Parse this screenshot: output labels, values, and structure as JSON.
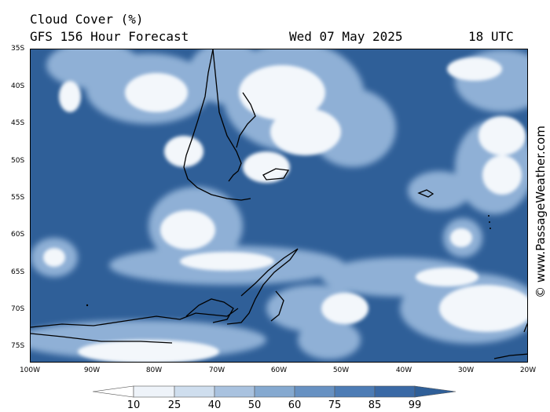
{
  "header": {
    "title": "Cloud Cover (%)",
    "forecast": "GFS 156 Hour Forecast",
    "date": "Wed 07 May 2025",
    "time": "18 UTC"
  },
  "axes": {
    "lat_labels": [
      "35S",
      "40S",
      "45S",
      "50S",
      "55S",
      "60S",
      "65S",
      "70S",
      "75S"
    ],
    "lon_labels": [
      "100W",
      "90W",
      "80W",
      "70W",
      "60W",
      "50W",
      "40W",
      "30W",
      "20W"
    ]
  },
  "credit": "© www.PassageWeather.com",
  "legend": {
    "labels": [
      "10",
      "25",
      "40",
      "50",
      "60",
      "75",
      "85",
      "99"
    ],
    "colors": [
      "#ffffff",
      "#eef3f9",
      "#cfdeee",
      "#a9c2df",
      "#85a9d0",
      "#6791c2",
      "#4d7cb5",
      "#3a69a5",
      "#2f5f98"
    ]
  },
  "colors": {
    "ocean_cloudless": "#2f5f98",
    "land_outline": "#000000"
  }
}
